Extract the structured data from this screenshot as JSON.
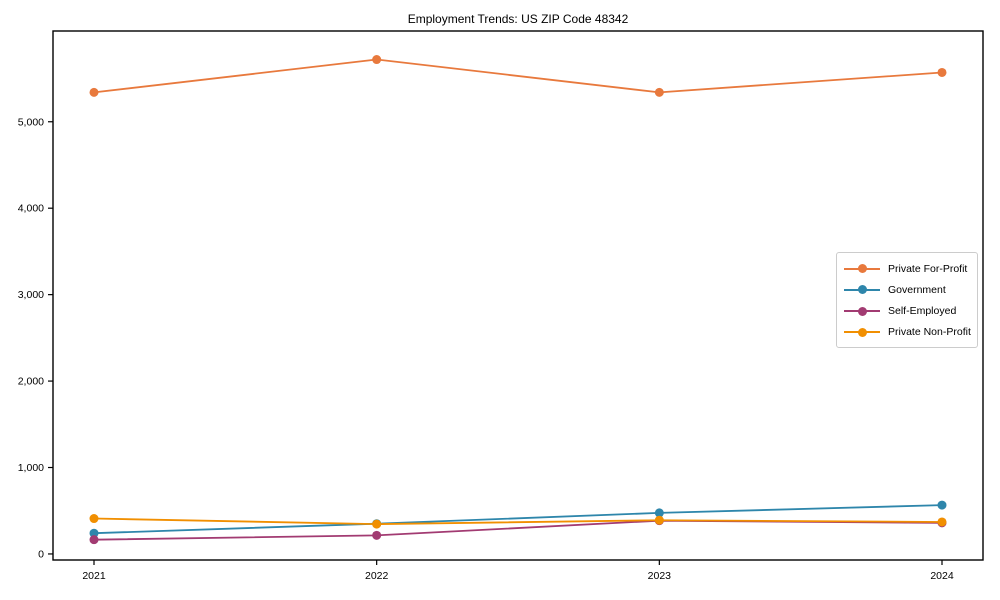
{
  "title": "Employment Trends: US ZIP Code 48342",
  "chart_data": {
    "type": "line",
    "title": "Employment Trends: US ZIP Code 48342",
    "xlabel": "",
    "ylabel": "",
    "x": [
      2021,
      2022,
      2023,
      2024
    ],
    "xtick_labels": [
      "2021",
      "2022",
      "2023",
      "2024"
    ],
    "yticks": [
      0,
      1000,
      2000,
      3000,
      4000,
      5000
    ],
    "ytick_labels": [
      "0",
      "1,000",
      "2,000",
      "3,000",
      "4,000",
      "5,000"
    ],
    "ylim": [
      -70,
      6050
    ],
    "grid": false,
    "marker": "circle",
    "legend_position": "center right",
    "series": [
      {
        "name": "Private For-Profit",
        "color": "#E8793D",
        "values": [
          5340,
          5720,
          5340,
          5570
        ]
      },
      {
        "name": "Government",
        "color": "#2E86AB",
        "values": [
          240,
          350,
          475,
          565
        ]
      },
      {
        "name": "Self-Employed",
        "color": "#A23B72",
        "values": [
          165,
          215,
          385,
          360
        ]
      },
      {
        "name": "Private Non-Profit",
        "color": "#F18F01",
        "values": [
          410,
          345,
          390,
          370
        ]
      }
    ],
    "axis_color": "#000000",
    "tick_label_color": "#000000"
  }
}
